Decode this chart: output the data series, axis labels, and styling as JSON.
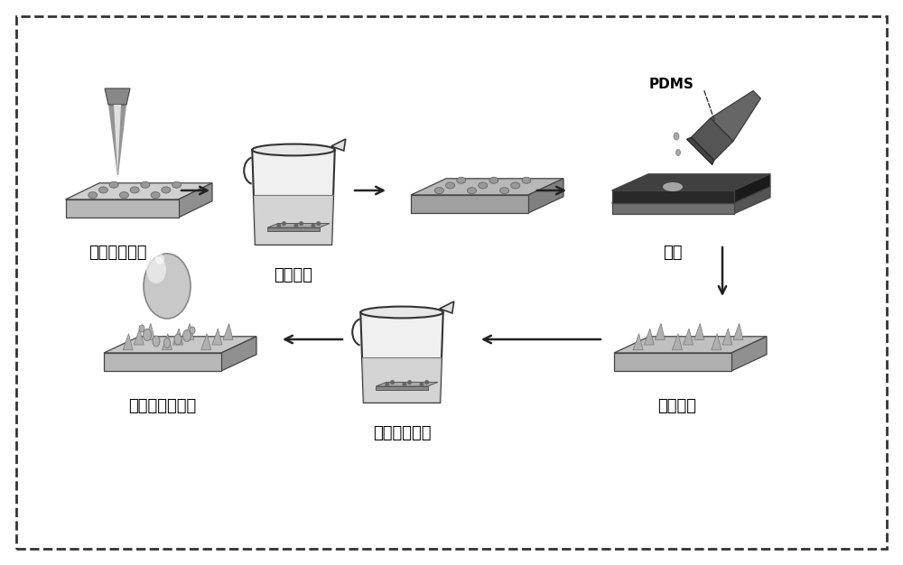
{
  "background_color": "#ffffff",
  "border_color": "#333333",
  "labels": {
    "step1": "激光加工模板",
    "step2": "盐酸刻蚀",
    "step4": "浇筑",
    "step5": "锥状阵列",
    "step6": "低表面能修饰",
    "step7": "超疏水锥状阵列"
  },
  "pdms_label": "PDMS",
  "arrow_color": "#222222",
  "font_size_label": 13,
  "font_size_pdms": 12
}
